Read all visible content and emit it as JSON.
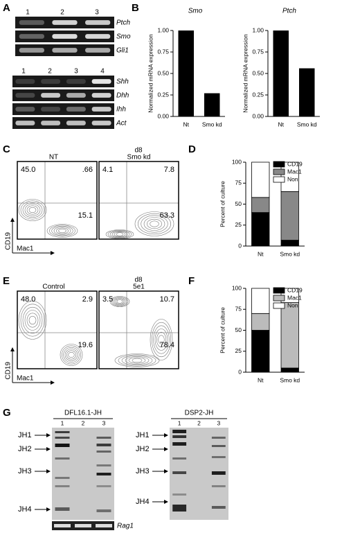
{
  "panel_labels": [
    "A",
    "B",
    "C",
    "D",
    "E",
    "F",
    "G"
  ],
  "gels": {
    "a_top": {
      "lanes": [
        "1",
        "2",
        "3"
      ],
      "genes": [
        "Ptch",
        "Smo",
        "Gli1"
      ]
    },
    "a_bottom": {
      "lanes": [
        "1",
        "2",
        "3",
        "4"
      ],
      "genes": [
        "Shh",
        "Dhh",
        "Ihh",
        "Act"
      ]
    },
    "g_left": {
      "title": "DFL16.1-JH",
      "lanes": [
        "1",
        "2",
        "3"
      ],
      "bands": [
        "JH1",
        "JH2",
        "JH3",
        "JH4"
      ],
      "control": "Rag1"
    },
    "g_right": {
      "title": "DSP2-JH",
      "lanes": [
        "1",
        "2",
        "3"
      ],
      "bands": [
        "JH1",
        "JH2",
        "JH3",
        "JH4"
      ]
    }
  },
  "flow": [
    {
      "timepoint": "d8",
      "x_label": "Mac1",
      "y_label": "CD19",
      "plots": [
        {
          "title": "NT",
          "quadrants": [
            "45.0",
            ".66",
            "15.1"
          ]
        },
        {
          "title": "Smo kd",
          "quadrants": [
            "4.1",
            "7.8",
            "63.3"
          ]
        }
      ]
    },
    {
      "timepoint": "d8",
      "x_label": "Mac1",
      "y_label": "CD19",
      "plots": [
        {
          "title": "Control",
          "quadrants": [
            "48.0",
            "2.9",
            "19.6"
          ]
        },
        {
          "title": "5e1",
          "quadrants": [
            "3.5",
            "10.7",
            "78.4"
          ]
        }
      ]
    }
  ],
  "chart_data": [
    {
      "type": "bar",
      "title": "Smo",
      "ylabel": "Normalized mRNA expression",
      "categories": [
        "Nt",
        "Smo kd"
      ],
      "values": [
        1.0,
        0.27
      ],
      "color": "#000000",
      "ylim": [
        0,
        1
      ],
      "yticks": [
        {
          "value": 0,
          "label": "0.00"
        },
        {
          "value": 0.25,
          "label": "0.25"
        },
        {
          "value": 0.5,
          "label": "0.50"
        },
        {
          "value": 0.75,
          "label": "0.75"
        },
        {
          "value": 1,
          "label": "1.00"
        }
      ]
    },
    {
      "type": "bar",
      "title": "Ptch",
      "ylabel": "Normalized mRNA expression",
      "categories": [
        "Nt",
        "Smo kd"
      ],
      "values": [
        1.0,
        0.56
      ],
      "color": "#000000",
      "ylim": [
        0,
        1
      ],
      "yticks": [
        {
          "value": 0,
          "label": "0.00"
        },
        {
          "value": 0.25,
          "label": "0.25"
        },
        {
          "value": 0.5,
          "label": "0.50"
        },
        {
          "value": 0.75,
          "label": "0.75"
        },
        {
          "value": 1,
          "label": "1.00"
        }
      ]
    },
    {
      "type": "stacked_bar",
      "ylabel": "Percent of culture",
      "categories": [
        "Nt",
        "Smo kd"
      ],
      "series": [
        {
          "name": "CD19",
          "color": "#000000",
          "values": [
            40,
            7
          ]
        },
        {
          "name": "Mac1",
          "color": "#888888",
          "values": [
            18,
            58
          ]
        },
        {
          "name": "Non",
          "color": "#ffffff",
          "values": [
            42,
            35
          ]
        }
      ],
      "ylim": [
        0,
        100
      ],
      "yticks": [
        0,
        25,
        50,
        75,
        100
      ],
      "legend": "outside upper right"
    },
    {
      "type": "stacked_bar",
      "ylabel": "Percent of culture",
      "categories": [
        "Nt",
        "Smo kd"
      ],
      "series": [
        {
          "name": "CD19",
          "color": "#000000",
          "values": [
            50,
            5
          ]
        },
        {
          "name": "Mac1",
          "color": "#bbbbbb",
          "values": [
            20,
            78
          ]
        },
        {
          "name": "Non",
          "color": "#ffffff",
          "values": [
            30,
            17
          ]
        }
      ],
      "ylim": [
        0,
        100
      ],
      "yticks": [
        0,
        25,
        50,
        75,
        100
      ],
      "legend": "outside upper right"
    }
  ]
}
